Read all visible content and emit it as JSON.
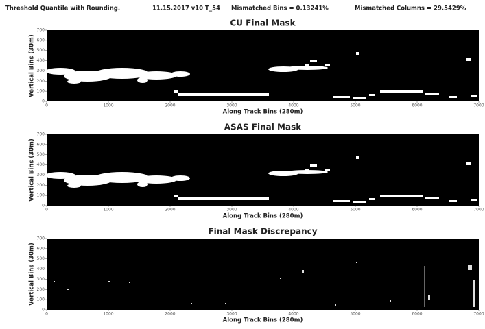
{
  "header": [
    "Threshold Quantile with Rounding.",
    "11.15.2017 v10 T_54",
    "Mismatched Bins = 0.13241%",
    "Mismatched Columns = 29.5429%"
  ],
  "chart_data": [
    {
      "type": "image",
      "title": "CU Final Mask",
      "x_label": "Along Track Bins (280m)",
      "y_label": "Vertical Bins (30m)",
      "xlim": [
        0,
        7000
      ],
      "xticks": [
        0,
        1000,
        2000,
        3000,
        4000,
        5000,
        6000,
        7000
      ],
      "ylim": [
        0,
        700
      ],
      "yticks": [
        0,
        100,
        200,
        300,
        400,
        500,
        600,
        700
      ]
    },
    {
      "type": "image",
      "title": "ASAS Final Mask",
      "x_label": "Along Track Bins (280m)",
      "y_label": "Vertical Bins (30m)",
      "xlim": [
        0,
        7000
      ],
      "xticks": [
        0,
        1000,
        2000,
        3000,
        4000,
        5000,
        6000,
        7000
      ],
      "ylim": [
        0,
        700
      ],
      "yticks": [
        0,
        100,
        200,
        300,
        400,
        500,
        600,
        700
      ]
    },
    {
      "type": "image",
      "title": "Final Mask Discrepancy",
      "x_label": "Along Track Bins (280m)",
      "y_label": "Vertical Bins (30m)",
      "xlim": [
        0,
        7000
      ],
      "xticks": [
        0,
        1000,
        2000,
        3000,
        4000,
        5000,
        6000,
        7000
      ],
      "ylim": [
        0,
        700
      ],
      "yticks": [
        0,
        100,
        200,
        300,
        400,
        500,
        600,
        700
      ]
    }
  ]
}
